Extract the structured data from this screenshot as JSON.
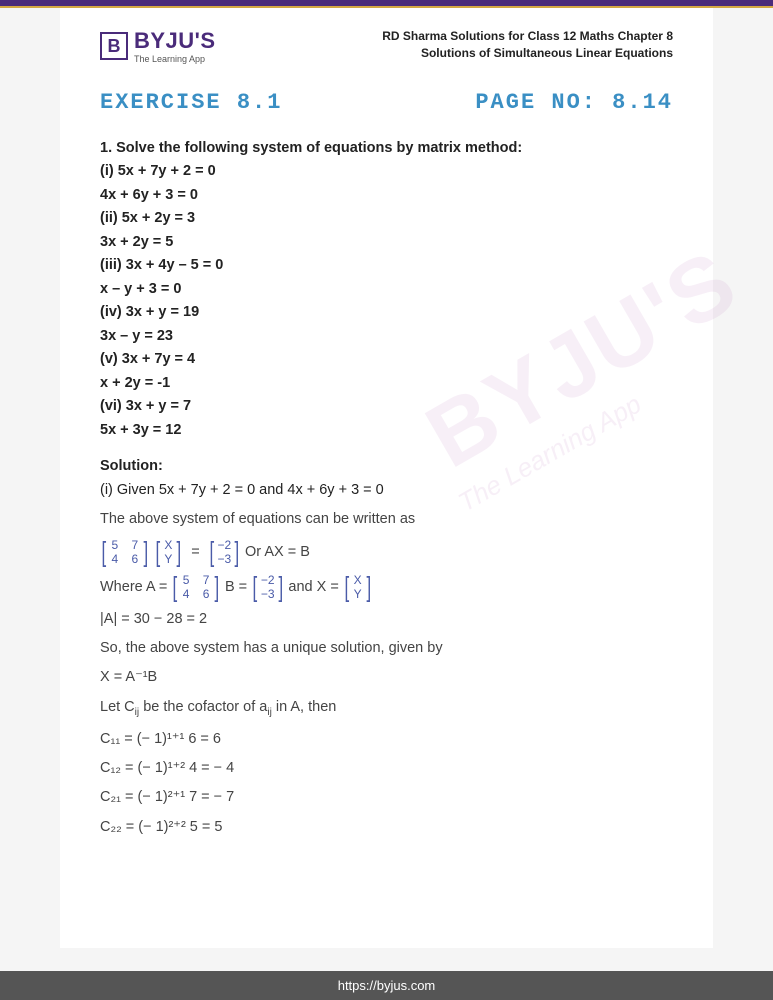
{
  "logo": {
    "letter": "B",
    "name": "BYJU'S",
    "tagline": "The Learning App"
  },
  "header": {
    "line1": "RD Sharma Solutions for Class 12 Maths Chapter 8",
    "line2": "Solutions of Simultaneous Linear Equations"
  },
  "exercise": {
    "label": "EXERCISE 8.1",
    "page": "PAGE NO: 8.14"
  },
  "question": {
    "prompt": "1. Solve the following system of equations by matrix method:",
    "parts": [
      "(i) 5x + 7y + 2 = 0",
      "4x + 6y + 3 = 0",
      "(ii) 5x + 2y = 3",
      "3x + 2y = 5",
      "(iii) 3x + 4y – 5 = 0",
      "x – y + 3 = 0",
      "(iv) 3x + y = 19",
      "3x – y = 23",
      "(v) 3x + 7y = 4",
      "x + 2y = -1",
      "(vi) 3x + y = 7",
      "5x + 3y = 12"
    ]
  },
  "solution": {
    "head": "Solution:",
    "intro": "(i) Given 5x + 7y + 2 = 0 and 4x + 6y + 3 = 0",
    "line1": "The above system of equations can be written as",
    "matA": [
      [
        "5",
        "7"
      ],
      [
        "4",
        "6"
      ]
    ],
    "matXY": [
      [
        "X"
      ],
      [
        "Y"
      ]
    ],
    "matB": [
      [
        "−2"
      ],
      [
        "−3"
      ]
    ],
    "eqline_suffix": " Or AX = B",
    "where_prefix": "Where A = ",
    "where_mid1": " B = ",
    "where_mid2": " and X = ",
    "det": "|A| = 30 − 28 = 2",
    "unique": "So, the above system has a unique solution, given by",
    "xab": "X = A⁻¹B",
    "cofactor_intro_a": "Let C",
    "cofactor_intro_b": " be the cofactor of a",
    "cofactor_intro_c": " in A, then",
    "c11": "C₁₁ = (− 1)¹⁺¹ 6 = 6",
    "c12": "C₁₂ = (− 1)¹⁺² 4 = − 4",
    "c21": "C₂₁ = (− 1)²⁺¹ 7 = − 7",
    "c22": "C₂₂ = (− 1)²⁺² 5 = 5"
  },
  "watermark": {
    "main": "BYJU'S",
    "sub": "The Learning App"
  },
  "footer": "https://byjus.com"
}
